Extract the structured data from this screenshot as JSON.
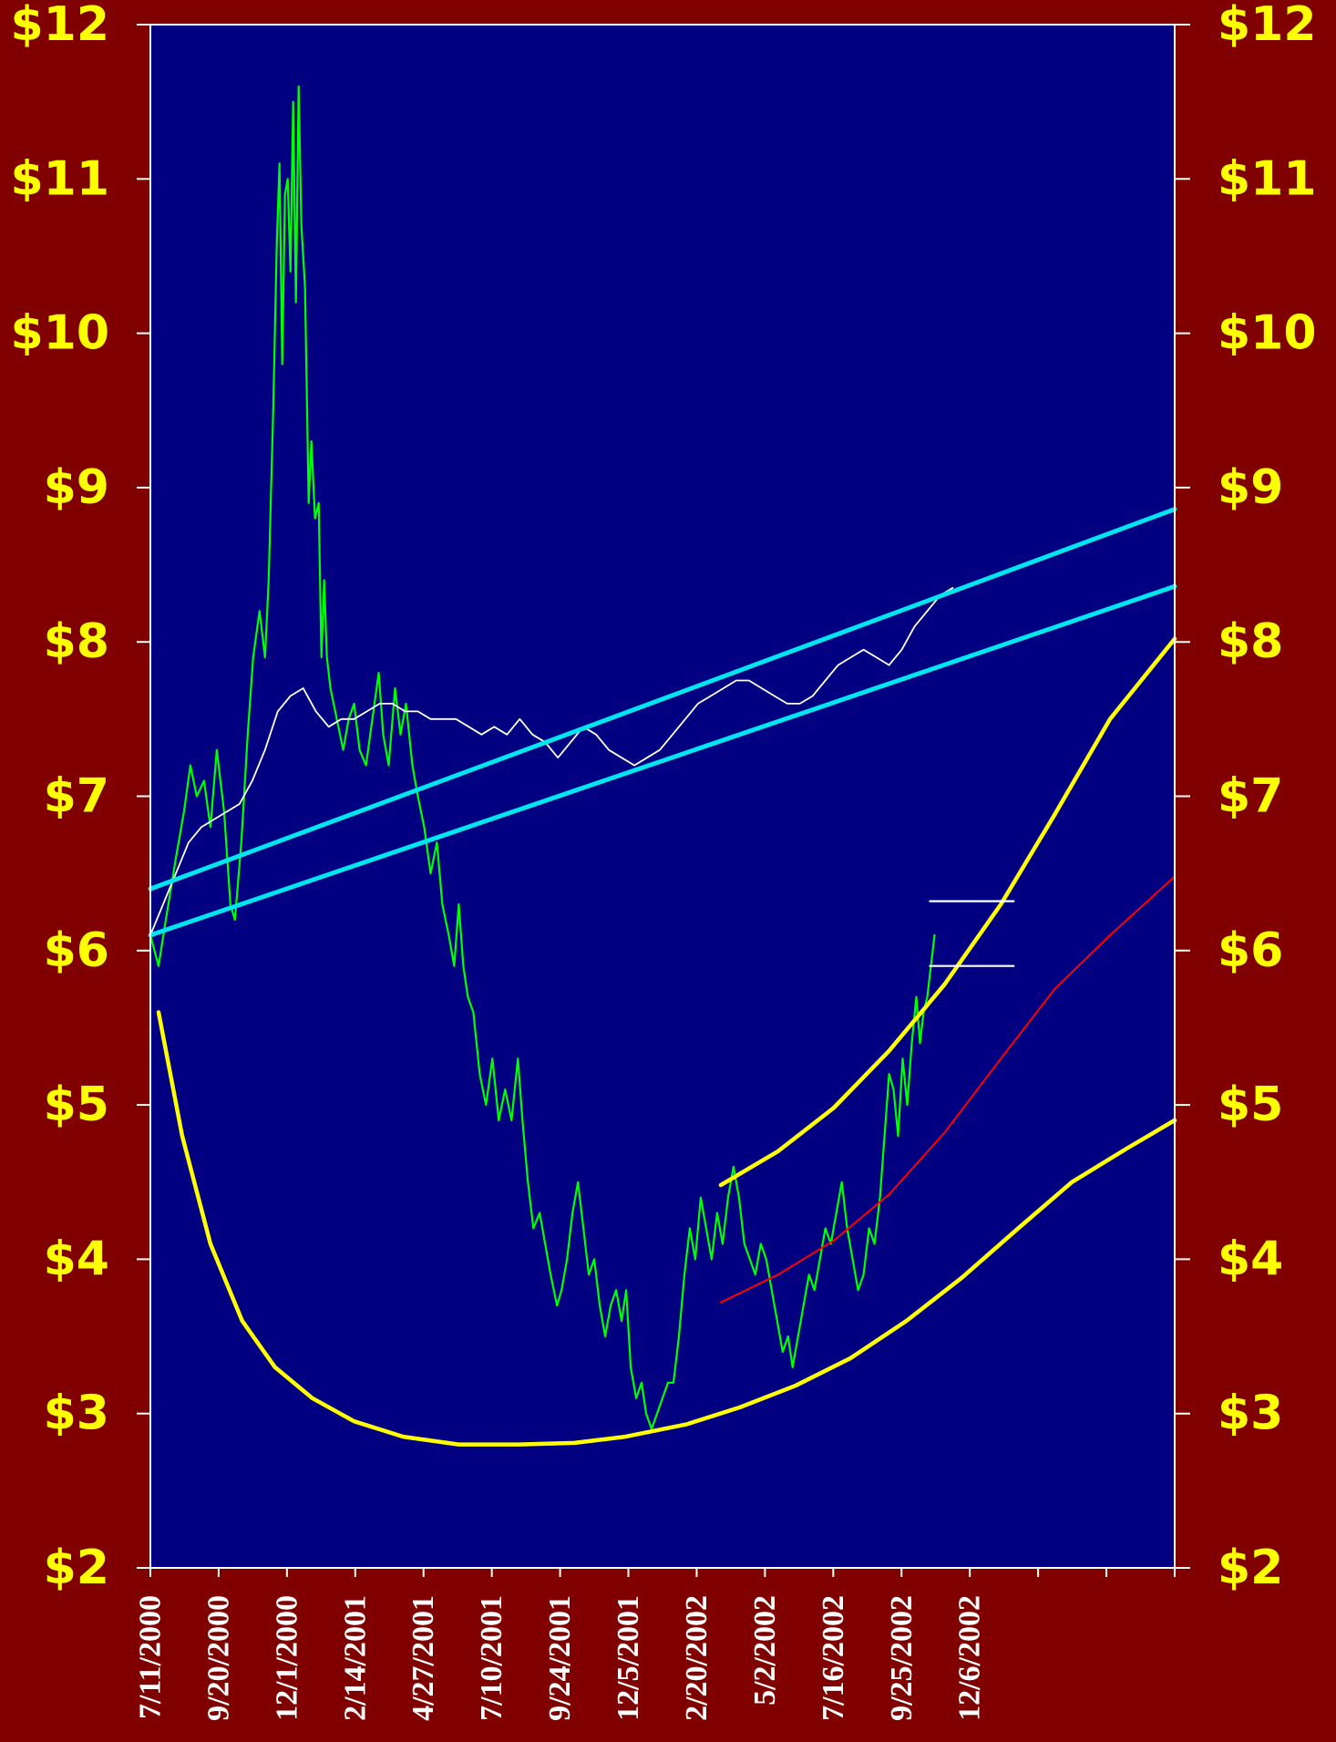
{
  "chart_data": {
    "type": "line",
    "title": "",
    "xlabel": "",
    "ylabel": "",
    "ylim": [
      2,
      12
    ],
    "y_ticks": [
      2,
      3,
      4,
      5,
      6,
      7,
      8,
      9,
      10,
      11,
      12
    ],
    "y_tick_labels": [
      "$2",
      "$3",
      "$4",
      "$5",
      "$6",
      "$7",
      "$8",
      "$9",
      "$10",
      "$11",
      "$12"
    ],
    "y_axis_both_sides": true,
    "x_axis": {
      "start": "7/11/2000",
      "end": "8/11/2003",
      "tick_labels": [
        "7/11/2000",
        "9/20/2000",
        "12/1/2000",
        "2/14/2001",
        "4/27/2001",
        "7/10/2001",
        "9/24/2001",
        "12/5/2001",
        "2/20/2002",
        "5/2/2002",
        "7/16/2002",
        "9/25/2002",
        "12/6/2002"
      ],
      "tick_count": 16
    },
    "grid": false,
    "legend": "none",
    "colors": {
      "background": "#800000",
      "plot_area": "#000080",
      "axis": "#FFFFFF",
      "y_labels": "#FFFF00",
      "x_labels": "#FFFFFF",
      "price": "#00FF00",
      "index": "#FFFFFF",
      "channel": "#00E5EE",
      "curve": "#FFFF00",
      "trend": "#FF0000"
    },
    "series": [
      {
        "style": "price",
        "points": [
          [
            "7/11/2000",
            6.1
          ],
          [
            "7/20/2000",
            5.9
          ],
          [
            "7/28/2000",
            6.2
          ],
          [
            "8/8/2000",
            6.6
          ],
          [
            "8/17/2000",
            6.9
          ],
          [
            "8/24/2000",
            7.2
          ],
          [
            "8/31/2000",
            7.0
          ],
          [
            "9/8/2000",
            7.1
          ],
          [
            "9/15/2000",
            6.8
          ],
          [
            "9/22/2000",
            7.3
          ],
          [
            "9/30/2000",
            6.9
          ],
          [
            "10/7/2000",
            6.3
          ],
          [
            "10/12/2000",
            6.2
          ],
          [
            "10/19/2000",
            6.7
          ],
          [
            "10/26/2000",
            7.4
          ],
          [
            "11/1/2000",
            7.9
          ],
          [
            "11/8/2000",
            8.2
          ],
          [
            "11/14/2000",
            7.9
          ],
          [
            "11/18/2000",
            8.4
          ],
          [
            "11/23/2000",
            9.5
          ],
          [
            "11/27/2000",
            10.6
          ],
          [
            "11/30/2000",
            11.1
          ],
          [
            "12/3/2000",
            9.8
          ],
          [
            "12/6/2000",
            10.9
          ],
          [
            "12/9/2000",
            11.0
          ],
          [
            "12/12/2000",
            10.4
          ],
          [
            "12/15/2000",
            11.5
          ],
          [
            "12/18/2000",
            10.2
          ],
          [
            "12/21/2000",
            11.6
          ],
          [
            "12/24/2000",
            10.7
          ],
          [
            "12/28/2000",
            10.3
          ],
          [
            "1/1/2001",
            8.9
          ],
          [
            "1/4/2001",
            9.3
          ],
          [
            "1/8/2001",
            8.8
          ],
          [
            "1/12/2001",
            8.9
          ],
          [
            "1/15/2001",
            7.9
          ],
          [
            "1/18/2001",
            8.4
          ],
          [
            "1/21/2001",
            7.9
          ],
          [
            "1/25/2001",
            7.7
          ],
          [
            "2/1/2001",
            7.5
          ],
          [
            "2/8/2001",
            7.3
          ],
          [
            "2/14/2001",
            7.5
          ],
          [
            "2/20/2001",
            7.6
          ],
          [
            "2/26/2001",
            7.3
          ],
          [
            "3/5/2001",
            7.2
          ],
          [
            "3/12/2001",
            7.5
          ],
          [
            "3/19/2001",
            7.8
          ],
          [
            "3/24/2001",
            7.4
          ],
          [
            "3/30/2001",
            7.2
          ],
          [
            "4/6/2001",
            7.7
          ],
          [
            "4/12/2001",
            7.4
          ],
          [
            "4/18/2001",
            7.6
          ],
          [
            "4/25/2001",
            7.2
          ],
          [
            "5/1/2001",
            7.0
          ],
          [
            "5/8/2001",
            6.8
          ],
          [
            "5/15/2001",
            6.5
          ],
          [
            "5/22/2001",
            6.7
          ],
          [
            "5/28/2001",
            6.3
          ],
          [
            "6/4/2001",
            6.1
          ],
          [
            "6/10/2001",
            5.9
          ],
          [
            "6/15/2001",
            6.3
          ],
          [
            "6/20/2001",
            5.9
          ],
          [
            "6/25/2001",
            5.7
          ],
          [
            "7/1/2001",
            5.6
          ],
          [
            "7/8/2001",
            5.2
          ],
          [
            "7/15/2001",
            5.0
          ],
          [
            "7/22/2001",
            5.3
          ],
          [
            "7/29/2001",
            4.9
          ],
          [
            "8/5/2001",
            5.1
          ],
          [
            "8/12/2001",
            4.9
          ],
          [
            "8/19/2001",
            5.3
          ],
          [
            "8/24/2001",
            4.9
          ],
          [
            "8/30/2001",
            4.5
          ],
          [
            "9/5/2001",
            4.2
          ],
          [
            "9/12/2001",
            4.3
          ],
          [
            "9/18/2001",
            4.1
          ],
          [
            "9/24/2001",
            3.9
          ],
          [
            "10/1/2001",
            3.7
          ],
          [
            "10/6/2001",
            3.8
          ],
          [
            "10/12/2001",
            4.0
          ],
          [
            "10/18/2001",
            4.3
          ],
          [
            "10/24/2001",
            4.5
          ],
          [
            "10/30/2001",
            4.2
          ],
          [
            "11/5/2001",
            3.9
          ],
          [
            "11/11/2001",
            4.0
          ],
          [
            "11/17/2001",
            3.7
          ],
          [
            "11/23/2001",
            3.5
          ],
          [
            "11/29/2001",
            3.7
          ],
          [
            "12/5/2001",
            3.8
          ],
          [
            "12/11/2001",
            3.6
          ],
          [
            "12/16/2001",
            3.8
          ],
          [
            "12/21/2001",
            3.3
          ],
          [
            "12/27/2001",
            3.1
          ],
          [
            "1/2/2002",
            3.2
          ],
          [
            "1/7/2002",
            3.0
          ],
          [
            "1/13/2002",
            2.9
          ],
          [
            "1/19/2002",
            3.0
          ],
          [
            "1/25/2002",
            3.1
          ],
          [
            "1/31/2002",
            3.2
          ],
          [
            "2/6/2002",
            3.2
          ],
          [
            "2/12/2002",
            3.5
          ],
          [
            "2/18/2002",
            3.9
          ],
          [
            "2/24/2002",
            4.2
          ],
          [
            "3/2/2002",
            4.0
          ],
          [
            "3/8/2002",
            4.4
          ],
          [
            "3/14/2002",
            4.2
          ],
          [
            "3/20/2002",
            4.0
          ],
          [
            "3/26/2002",
            4.3
          ],
          [
            "4/1/2002",
            4.1
          ],
          [
            "4/7/2002",
            4.4
          ],
          [
            "4/13/2002",
            4.6
          ],
          [
            "4/19/2002",
            4.4
          ],
          [
            "4/25/2002",
            4.1
          ],
          [
            "5/1/2002",
            4.0
          ],
          [
            "5/7/2002",
            3.9
          ],
          [
            "5/13/2002",
            4.1
          ],
          [
            "5/19/2002",
            4.0
          ],
          [
            "5/25/2002",
            3.8
          ],
          [
            "5/31/2002",
            3.6
          ],
          [
            "6/6/2002",
            3.4
          ],
          [
            "6/12/2002",
            3.5
          ],
          [
            "6/17/2002",
            3.3
          ],
          [
            "6/23/2002",
            3.5
          ],
          [
            "6/29/2002",
            3.7
          ],
          [
            "7/5/2002",
            3.9
          ],
          [
            "7/11/2002",
            3.8
          ],
          [
            "7/17/2002",
            4.0
          ],
          [
            "7/23/2002",
            4.2
          ],
          [
            "7/29/2002",
            4.1
          ],
          [
            "8/4/2002",
            4.3
          ],
          [
            "8/10/2002",
            4.5
          ],
          [
            "8/16/2002",
            4.2
          ],
          [
            "8/22/2002",
            4.0
          ],
          [
            "8/28/2002",
            3.8
          ],
          [
            "9/3/2002",
            3.9
          ],
          [
            "9/9/2002",
            4.2
          ],
          [
            "9/15/2002",
            4.1
          ],
          [
            "9/21/2002",
            4.4
          ],
          [
            "9/26/2002",
            4.8
          ],
          [
            "10/1/2002",
            5.2
          ],
          [
            "10/6/2002",
            5.1
          ],
          [
            "10/11/2002",
            4.8
          ],
          [
            "10/16/2002",
            5.3
          ],
          [
            "10/21/2002",
            5.0
          ],
          [
            "10/26/2002",
            5.4
          ],
          [
            "10/31/2002",
            5.7
          ],
          [
            "11/4/2002",
            5.4
          ],
          [
            "11/8/2002",
            5.6
          ],
          [
            "11/12/2002",
            5.7
          ],
          [
            "11/16/2002",
            5.9
          ],
          [
            "11/20/2002",
            6.1
          ]
        ]
      },
      {
        "style": "index",
        "points": [
          [
            "7/11/2000",
            6.1
          ],
          [
            "7/25/2000",
            6.3
          ],
          [
            "8/8/2000",
            6.5
          ],
          [
            "8/22/2000",
            6.7
          ],
          [
            "9/5/2000",
            6.8
          ],
          [
            "9/19/2000",
            6.85
          ],
          [
            "10/3/2000",
            6.9
          ],
          [
            "10/17/2000",
            6.95
          ],
          [
            "10/31/2000",
            7.1
          ],
          [
            "11/14/2000",
            7.3
          ],
          [
            "11/28/2000",
            7.55
          ],
          [
            "12/12/2000",
            7.65
          ],
          [
            "12/26/2000",
            7.7
          ],
          [
            "1/9/2001",
            7.55
          ],
          [
            "1/23/2001",
            7.45
          ],
          [
            "2/6/2001",
            7.5
          ],
          [
            "2/20/2001",
            7.5
          ],
          [
            "3/6/2001",
            7.55
          ],
          [
            "3/20/2001",
            7.6
          ],
          [
            "4/3/2001",
            7.6
          ],
          [
            "4/17/2001",
            7.55
          ],
          [
            "5/1/2001",
            7.55
          ],
          [
            "5/15/2001",
            7.5
          ],
          [
            "5/29/2001",
            7.5
          ],
          [
            "6/12/2001",
            7.5
          ],
          [
            "6/26/2001",
            7.45
          ],
          [
            "7/10/2001",
            7.4
          ],
          [
            "7/24/2001",
            7.45
          ],
          [
            "8/7/2001",
            7.4
          ],
          [
            "8/21/2001",
            7.5
          ],
          [
            "9/4/2001",
            7.4
          ],
          [
            "9/18/2001",
            7.35
          ],
          [
            "10/2/2001",
            7.25
          ],
          [
            "10/16/2001",
            7.35
          ],
          [
            "10/30/2001",
            7.45
          ],
          [
            "11/13/2001",
            7.4
          ],
          [
            "11/27/2001",
            7.3
          ],
          [
            "12/11/2001",
            7.25
          ],
          [
            "12/25/2001",
            7.2
          ],
          [
            "1/8/2002",
            7.25
          ],
          [
            "1/22/2002",
            7.3
          ],
          [
            "2/5/2002",
            7.4
          ],
          [
            "2/19/2002",
            7.5
          ],
          [
            "3/5/2002",
            7.6
          ],
          [
            "3/19/2002",
            7.65
          ],
          [
            "4/2/2002",
            7.7
          ],
          [
            "4/16/2002",
            7.75
          ],
          [
            "4/30/2002",
            7.75
          ],
          [
            "5/14/2002",
            7.7
          ],
          [
            "5/28/2002",
            7.65
          ],
          [
            "6/11/2002",
            7.6
          ],
          [
            "6/25/2002",
            7.6
          ],
          [
            "7/9/2002",
            7.65
          ],
          [
            "7/23/2002",
            7.75
          ],
          [
            "8/6/2002",
            7.85
          ],
          [
            "8/20/2002",
            7.9
          ],
          [
            "9/3/2002",
            7.95
          ],
          [
            "9/17/2002",
            7.9
          ],
          [
            "10/1/2002",
            7.85
          ],
          [
            "10/15/2002",
            7.95
          ],
          [
            "10/29/2002",
            8.1
          ],
          [
            "11/12/2002",
            8.2
          ],
          [
            "11/26/2002",
            8.3
          ],
          [
            "12/10/2002",
            8.35
          ]
        ]
      },
      {
        "style": "channel",
        "points": [
          [
            "7/11/2000",
            6.4
          ],
          [
            "8/11/2003",
            8.86
          ]
        ]
      },
      {
        "style": "channel",
        "points": [
          [
            "7/11/2000",
            6.1
          ],
          [
            "8/11/2003",
            8.36
          ]
        ]
      },
      {
        "style": "curve",
        "points": [
          [
            "7/20/2000",
            5.6
          ],
          [
            "8/15/2000",
            4.8
          ],
          [
            "9/15/2000",
            4.1
          ],
          [
            "10/20/2000",
            3.6
          ],
          [
            "11/25/2000",
            3.3
          ],
          [
            "1/5/2001",
            3.1
          ],
          [
            "2/20/2001",
            2.95
          ],
          [
            "4/15/2001",
            2.85
          ],
          [
            "6/15/2001",
            2.8
          ],
          [
            "8/20/2001",
            2.8
          ],
          [
            "10/20/2001",
            2.81
          ],
          [
            "12/15/2001",
            2.85
          ],
          [
            "2/20/2002",
            2.93
          ],
          [
            "4/20/2002",
            3.04
          ],
          [
            "6/20/2002",
            3.18
          ],
          [
            "8/20/2002",
            3.36
          ],
          [
            "10/20/2002",
            3.6
          ],
          [
            "12/20/2002",
            3.88
          ],
          [
            "2/20/2003",
            4.2
          ],
          [
            "4/20/2003",
            4.5
          ],
          [
            "6/20/2003",
            4.72
          ],
          [
            "8/11/2003",
            4.9
          ]
        ]
      },
      {
        "style": "curve",
        "points": [
          [
            "3/30/2002",
            4.48
          ],
          [
            "6/1/2002",
            4.7
          ],
          [
            "8/1/2002",
            4.98
          ],
          [
            "10/1/2002",
            5.35
          ],
          [
            "12/1/2002",
            5.78
          ],
          [
            "2/1/2003",
            6.3
          ],
          [
            "4/1/2003",
            6.88
          ],
          [
            "6/1/2003",
            7.5
          ],
          [
            "8/11/2003",
            8.02
          ]
        ]
      },
      {
        "style": "trend",
        "points": [
          [
            "3/30/2002",
            3.72
          ],
          [
            "6/1/2002",
            3.9
          ],
          [
            "8/1/2002",
            4.12
          ],
          [
            "10/1/2002",
            4.42
          ],
          [
            "12/1/2002",
            4.82
          ],
          [
            "2/1/2003",
            5.3
          ],
          [
            "4/1/2003",
            5.75
          ],
          [
            "6/1/2003",
            6.1
          ],
          [
            "8/11/2003",
            6.48
          ]
        ]
      },
      {
        "style": "marker",
        "points": [
          [
            "11/15/2002",
            6.32
          ],
          [
            "2/15/2003",
            6.32
          ]
        ]
      },
      {
        "style": "marker",
        "points": [
          [
            "11/15/2002",
            5.9
          ],
          [
            "2/15/2003",
            5.9
          ]
        ]
      }
    ]
  }
}
